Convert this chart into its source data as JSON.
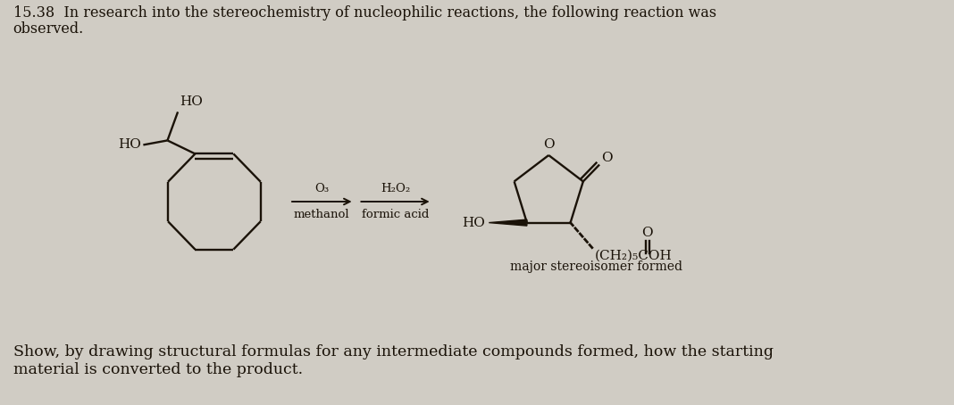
{
  "bg_color": "#d0ccc4",
  "title_line1": "15.38  In research into the stereochemistry of nucleophilic reactions, the following reaction was",
  "title_line2": "observed.",
  "bottom_line1": "Show, by drawing structural formulas for any intermediate compounds formed, how the starting",
  "bottom_line2": "material is converted to the product.",
  "reagent1_top": "O₃",
  "reagent1_bot": "methanol",
  "reagent2_top": "H₂O₂",
  "reagent2_bot": "formic acid",
  "label_major": "major stereoisomer formed",
  "label_CH2_5COH": "(CH₂)₅COH",
  "text_color": "#1a1208",
  "lw": 1.7,
  "title_fs": 11.5,
  "body_fs": 12.5,
  "chem_fs": 11,
  "reagent_fs": 9.5
}
